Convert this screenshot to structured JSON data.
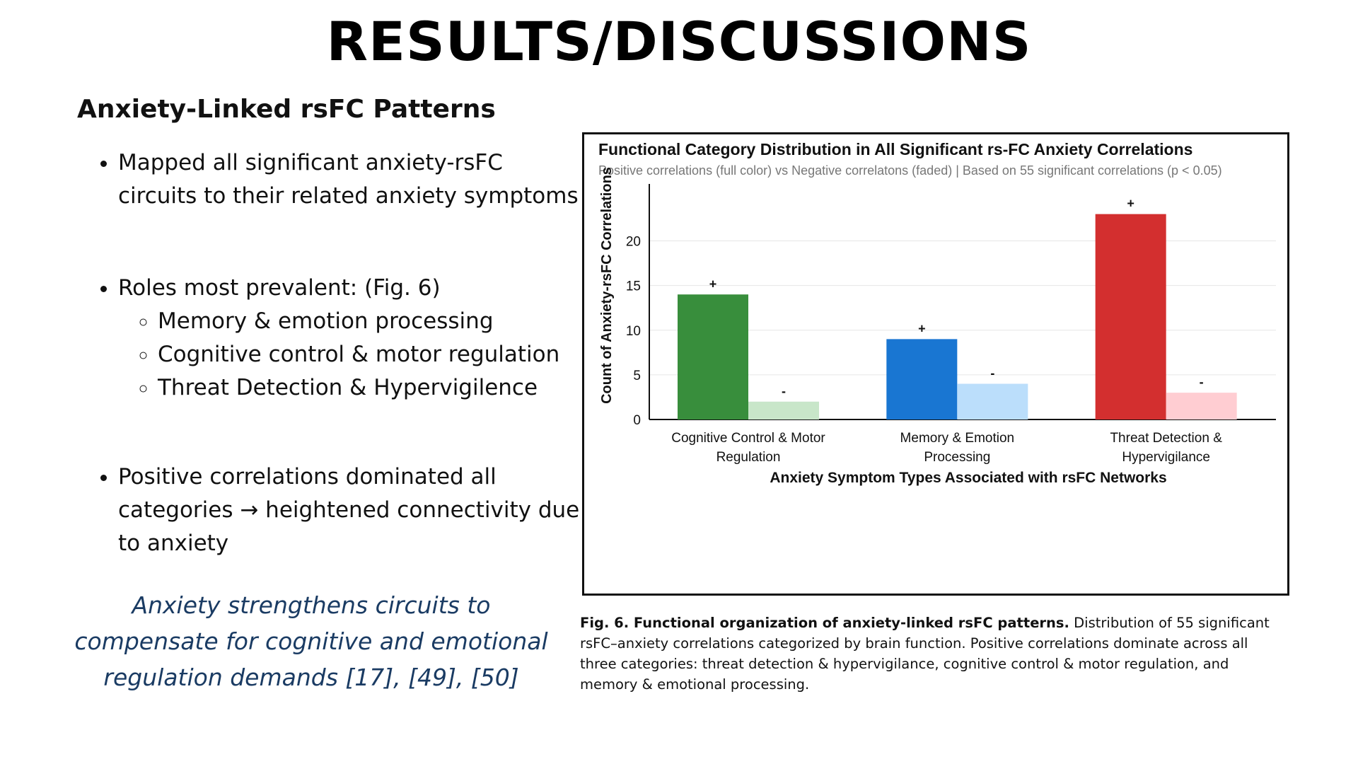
{
  "page": {
    "title": "RESULTS/DISCUSSIONS",
    "section_heading": "Anxiety-Linked rsFC Patterns",
    "bullets": [
      {
        "text": "Mapped all significant anxiety-rsFC circuits to their related anxiety symptoms"
      },
      {
        "text": "Roles most prevalent: (Fig. 6)",
        "sub": [
          "Memory & emotion processing",
          "Cognitive control & motor regulation",
          "Threat Detection & Hypervigilence"
        ]
      },
      {
        "text": "Positive correlations dominated all categories → heightened connectivity due to anxiety"
      }
    ],
    "conclusion": "Anxiety strengthens circuits to compensate for cognitive and emotional regulation demands [17], [49], [50]",
    "caption": {
      "bold": "Fig. 6. Functional organization of anxiety-linked rsFC patterns.",
      "text": "Distribution of 55 significant rsFC–anxiety correlations categorized by brain function. Positive correlations dominate across all three categories: threat detection & hypervigilance, cognitive control & motor regulation, and memory & emotional processing."
    }
  },
  "chart_data": {
    "type": "bar",
    "title": "Functional Category Distribution in All Significant rs-FC Anxiety Correlations",
    "subtitle": "Positive correlations (full color) vs Negative correlatons (faded) | Based on 55 significant correlations (p < 0.05)",
    "xlabel": "Anxiety Symptom Types Associated with rsFC Networks",
    "ylabel": "Count of  Anxiety-rsFC Correlations",
    "ylim": [
      0,
      24
    ],
    "yticks": [
      0,
      5,
      10,
      15,
      20
    ],
    "grid": true,
    "categories": [
      {
        "lines": [
          "Cognitive Control & Motor",
          "Regulation"
        ]
      },
      {
        "lines": [
          "Memory & Emotion",
          "Processing"
        ]
      },
      {
        "lines": [
          "Threat Detection &",
          "Hypervigilance"
        ]
      }
    ],
    "bars": [
      {
        "category": 0,
        "sign": "+",
        "value": 14,
        "color": "#388e3c"
      },
      {
        "category": 0,
        "sign": "-",
        "value": 2,
        "color": "#c8e6c9"
      },
      {
        "category": 1,
        "sign": "+",
        "value": 9,
        "color": "#1976d2"
      },
      {
        "category": 1,
        "sign": "-",
        "value": 4,
        "color": "#bbdefb"
      },
      {
        "category": 2,
        "sign": "+",
        "value": 23,
        "color": "#d32f2f"
      },
      {
        "category": 2,
        "sign": "-",
        "value": 3,
        "color": "#ffcdd2"
      }
    ]
  }
}
